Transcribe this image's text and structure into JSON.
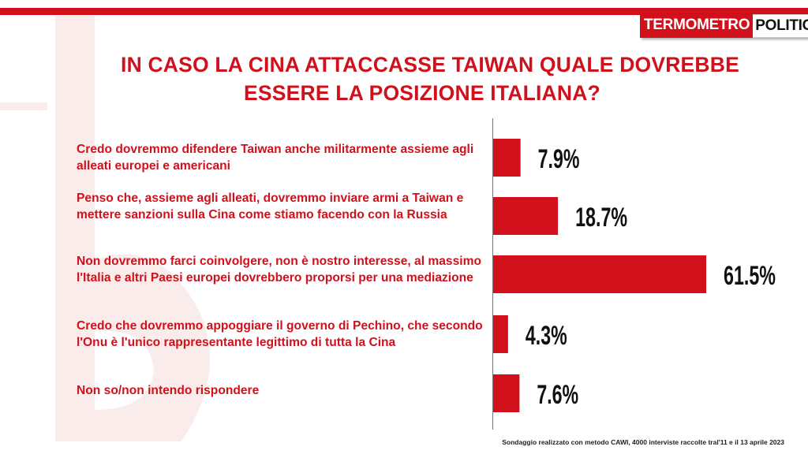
{
  "brand": {
    "logo_part1": "TERMOMETRO",
    "logo_part2": "POLITICO",
    "accent_color": "#d0111c"
  },
  "title": {
    "line1": "IN CASO LA CINA ATTACCASSE TAIWAN QUALE DOVREBBE",
    "line2": "ESSERE LA POSIZIONE ITALIANA?"
  },
  "footer": {
    "source": "Sondaggio realizzato con metodo CAWI, 4000 interviste raccolte tral'11 e il 13 aprile 2023"
  },
  "chart_data": {
    "type": "bar",
    "orientation": "horizontal",
    "title": "IN CASO LA CINA ATTACCASSE TAIWAN QUALE DOVREBBE ESSERE LA POSIZIONE ITALIANA?",
    "categories": [
      "Credo dovremmo difendere Taiwan anche militarmente assieme agli alleati europei e americani",
      "Penso che, assieme agli alleati, dovremmo inviare armi a Taiwan e mettere sanzioni sulla Cina come stiamo facendo con la Russia",
      "Non dovremmo farci coinvolgere, non è nostro interesse, al massimo l'Italia e altri Paesi europei dovrebbero proporsi per una mediazione",
      "Credo che dovremmo appoggiare il governo di Pechino, che secondo l'Onu è l'unico rappresentante legittimo di tutta la Cina",
      "Non so/non intendo rispondere"
    ],
    "values": [
      7.9,
      18.7,
      61.5,
      4.3,
      7.6
    ],
    "value_labels": [
      "7.9%",
      "18.7%",
      "61.5%",
      "4.3%",
      "7.6%"
    ],
    "unit": "%",
    "xlim": [
      0,
      61.5
    ],
    "bar_color": "#d0111c",
    "grid": false,
    "legend": "none"
  }
}
